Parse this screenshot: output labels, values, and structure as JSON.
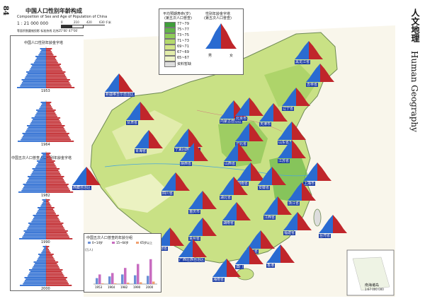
{
  "page_number": "84",
  "section_title_cn": "人文地理",
  "section_title_en": "Human Geography",
  "main_title_cn": "中国人口性别年龄构成",
  "main_title_en": "Composition of Sex and Age of Population of China",
  "scale_text": "1 : 21 000 000",
  "scale_ticks": [
    "0",
    "210",
    "420",
    "630 千米"
  ],
  "projection_text": "等面积割圆锥投影  标准纬线  北纬25°00′  47°00′",
  "national_pyramid_title": "中国人口性别年龄金字塔",
  "census_pyramid_title": "中国五次人口普查人口性别年龄金字塔",
  "pyramid_years": [
    "1953",
    "1964",
    "1982",
    "1990",
    "2000"
  ],
  "legend_life": {
    "title": "平均预期寿命(岁)",
    "subtitle": "(第五次人口普查)",
    "items": [
      {
        "label": "77~79",
        "color": "#3f9e3a"
      },
      {
        "label": "75~77",
        "color": "#62b44a"
      },
      {
        "label": "73~75",
        "color": "#8fcc5a"
      },
      {
        "label": "71~73",
        "color": "#b4d96c"
      },
      {
        "label": "69~71",
        "color": "#d3e68a"
      },
      {
        "label": "67~69",
        "color": "#e2edaa"
      },
      {
        "label": "65~67",
        "color": "#eef4c8"
      },
      {
        "label": "资料暂缺",
        "color": "#dddddd"
      }
    ]
  },
  "legend_pyramid": {
    "title": "性别年龄金字塔",
    "subtitle": "(第五次人口普查)",
    "male": "男",
    "female": "女"
  },
  "bar_chart_title": "中国五次人口普查的年龄分组",
  "chart_data": {
    "type": "bar",
    "title": "中国五次人口普查的年龄分组",
    "ylabel": "(万人)",
    "categories": [
      "1953",
      "1964",
      "1982",
      "1990",
      "2000"
    ],
    "series": [
      {
        "name": "0~14岁",
        "values": [
          21000,
          27000,
          34000,
          31000,
          29000
        ]
      },
      {
        "name": "15~64岁",
        "values": [
          34000,
          39000,
          57000,
          71000,
          88000
        ]
      },
      {
        "name": "65岁以上",
        "values": [
          2400,
          2500,
          5000,
          6300,
          8800
        ]
      }
    ],
    "ylim": [
      0,
      100000
    ],
    "legend": "top"
  },
  "provinces": [
    "黑龙江省",
    "吉林省",
    "辽宁省",
    "新疆维吾尔自治区",
    "甘肃省",
    "内蒙古自治区",
    "北京市",
    "天津市",
    "河北省",
    "山东省",
    "宁夏回族自治区",
    "青海省",
    "山西省",
    "陕西省",
    "河南省",
    "江苏省",
    "上海市",
    "西藏自治区",
    "四川省",
    "湖北省",
    "安徽省",
    "浙江省",
    "重庆市",
    "湖南省",
    "江西省",
    "福建省",
    "贵州省",
    "台湾省",
    "云南省",
    "广西壮族自治区",
    "广东省",
    "香港",
    "澳门",
    "海南省"
  ],
  "south_sea_label": "南海诸岛",
  "south_sea_scale": "1:67 000 000"
}
